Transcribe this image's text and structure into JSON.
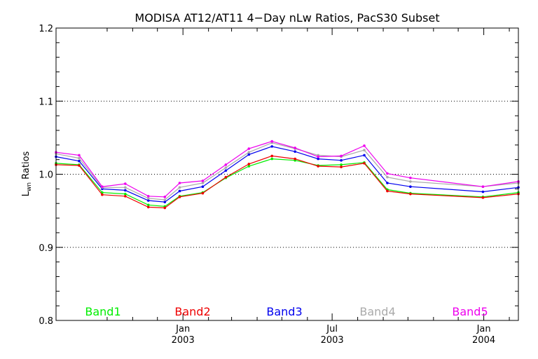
{
  "chart_data": {
    "type": "line",
    "title": "MODISA AT12/AT11 4−Day nLw Ratios, PacS30 Subset",
    "ylabel_main": "L",
    "ylabel_sub": "wn",
    "ylabel_rest": " Ratios",
    "ylim": [
      0.8,
      1.2
    ],
    "yticks": [
      "0.8",
      "0.9",
      "1.0",
      "1.1",
      "1.2"
    ],
    "ytick_values": [
      0.8,
      0.9,
      1.0,
      1.1,
      1.2
    ],
    "xlim": [
      "2002-07-31",
      "2004-02-12"
    ],
    "xticks": [
      {
        "date": "2003-01-01",
        "month": "Jan",
        "year": "2003"
      },
      {
        "date": "2003-07-01",
        "month": "Jul",
        "year": "2003"
      },
      {
        "date": "2004-01-01",
        "month": "Jan",
        "year": "2004"
      }
    ],
    "minor_ticks": [
      "2002-10-01",
      "2002-11-01",
      "2002-12-01",
      "2003-02-01",
      "2003-03-01",
      "2003-04-01",
      "2003-05-01",
      "2003-06-01",
      "2003-08-01",
      "2003-09-01",
      "2003-10-01",
      "2003-11-01",
      "2003-12-01",
      "2004-02-01"
    ],
    "grid_y": [
      0.9,
      1.0,
      1.1
    ],
    "x": [
      "2002-07-31",
      "2002-08-28",
      "2002-09-25",
      "2002-10-23",
      "2002-11-20",
      "2002-12-10",
      "2002-12-28",
      "2003-01-25",
      "2003-02-22",
      "2003-03-22",
      "2003-04-19",
      "2003-05-17",
      "2003-06-14",
      "2003-07-12",
      "2003-08-09",
      "2003-09-06",
      "2003-10-04",
      "2003-12-31",
      "2004-02-12"
    ],
    "series": [
      {
        "name": "Band1",
        "color": "#00ee00",
        "values": [
          1.015,
          1.013,
          0.975,
          0.973,
          0.958,
          0.956,
          0.97,
          0.975,
          0.995,
          1.011,
          1.021,
          1.019,
          1.012,
          1.013,
          1.016,
          0.979,
          0.974,
          0.969,
          0.975
        ]
      },
      {
        "name": "Band2",
        "color": "#ee0000",
        "values": [
          1.013,
          1.012,
          0.972,
          0.97,
          0.955,
          0.954,
          0.969,
          0.974,
          0.996,
          1.014,
          1.025,
          1.021,
          1.011,
          1.01,
          1.015,
          0.977,
          0.973,
          0.968,
          0.973
        ]
      },
      {
        "name": "Band3",
        "color": "#0000ee",
        "values": [
          1.024,
          1.018,
          0.98,
          0.978,
          0.964,
          0.962,
          0.977,
          0.983,
          1.005,
          1.027,
          1.038,
          1.031,
          1.021,
          1.019,
          1.026,
          0.988,
          0.983,
          0.976,
          0.982
        ]
      },
      {
        "name": "Band4",
        "color": "#aaaaaa",
        "values": [
          1.028,
          1.022,
          0.982,
          0.982,
          0.967,
          0.965,
          0.982,
          0.988,
          1.009,
          1.03,
          1.043,
          1.035,
          1.026,
          1.024,
          1.033,
          0.996,
          0.99,
          0.983,
          0.988
        ]
      },
      {
        "name": "Band5",
        "color": "#ee00ee",
        "values": [
          1.03,
          1.026,
          0.983,
          0.987,
          0.97,
          0.969,
          0.988,
          0.991,
          1.013,
          1.035,
          1.045,
          1.036,
          1.024,
          1.025,
          1.039,
          1.001,
          0.995,
          0.983,
          0.99
        ]
      }
    ]
  }
}
